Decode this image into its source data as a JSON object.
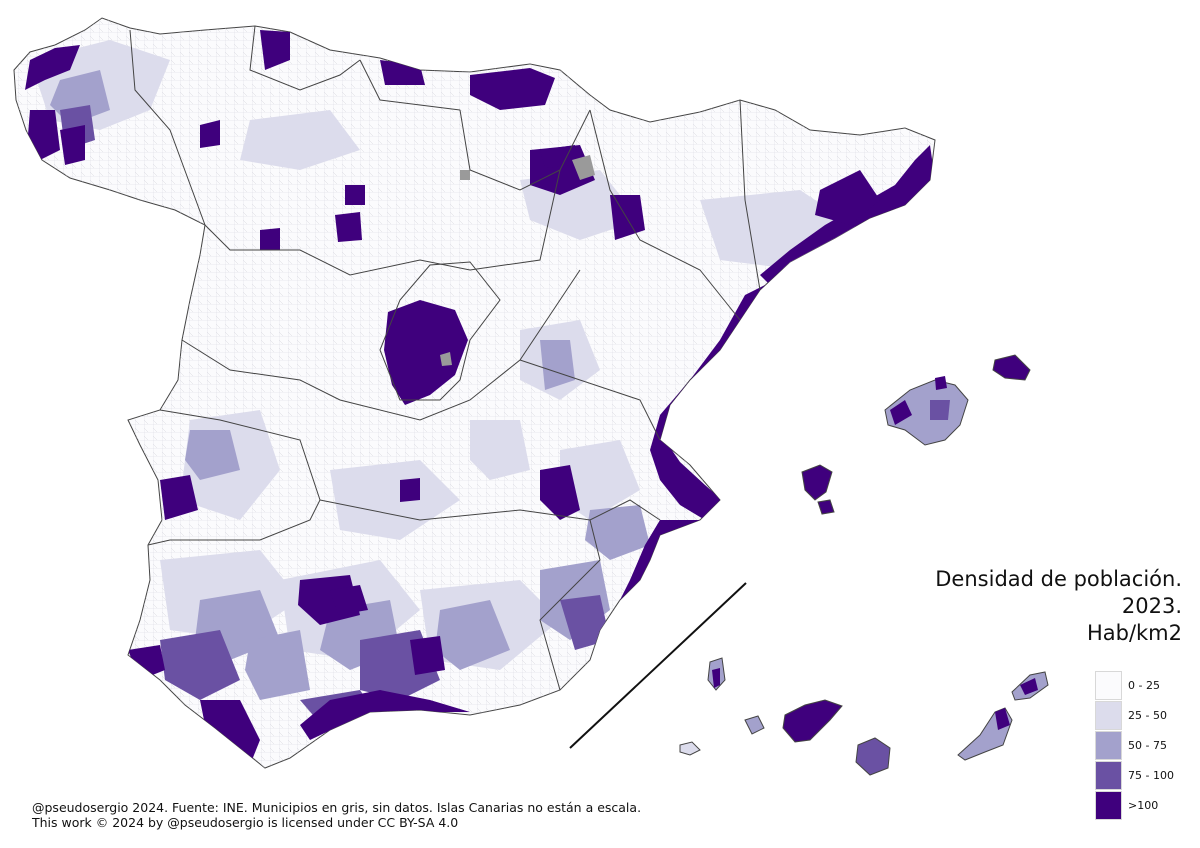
{
  "title": {
    "line1": "Densidad de población.",
    "line2": "2023.",
    "line3": "Hab/km2"
  },
  "legend": [
    {
      "label": "0 - 25",
      "color": "#fbfbfd"
    },
    {
      "label": "25 - 50",
      "color": "#dcdcec"
    },
    {
      "label": "50 - 75",
      "color": "#a3a1cc"
    },
    {
      "label": "75 - 100",
      "color": "#6a51a3"
    },
    {
      "label": ">100",
      "color": "#3f007d"
    }
  ],
  "no_data_color": "#9a9a9a",
  "footer": {
    "line1": "@pseudosergio 2024. Fuente: INE. Municipios en gris, sin datos. Islas Canarias no están a escala.",
    "line2": "This work © 2024 by @pseudosergio is licensed under CC BY-SA 4.0"
  }
}
